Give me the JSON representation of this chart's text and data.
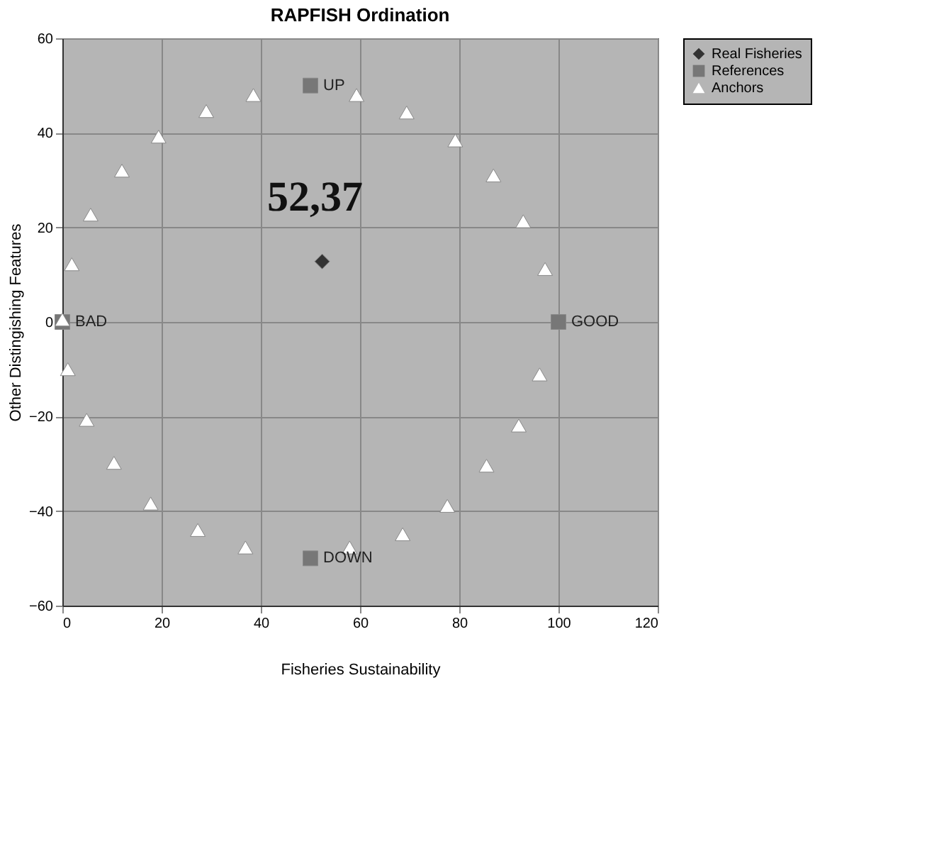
{
  "chart_data": {
    "type": "scatter",
    "title": "RAPFISH Ordination",
    "xlabel": "Fisheries Sustainability",
    "ylabel": "Other Distingishing Features",
    "xlim": [
      0,
      120
    ],
    "xticks": [
      0,
      20,
      40,
      60,
      80,
      100,
      120
    ],
    "ylim": [
      -60,
      60
    ],
    "yticks": [
      -60,
      -40,
      -20,
      0,
      20,
      40,
      60
    ],
    "grid": true,
    "legend": "right",
    "series": [
      {
        "name": "Real Fisheries",
        "color": "#333333",
        "marker": "diamond",
        "x": [
          52.37
        ],
        "values": [
          12.8
        ]
      },
      {
        "name": "References",
        "color": "#777777",
        "marker": "square",
        "x": [
          100,
          50,
          0,
          50
        ],
        "values": [
          0,
          50,
          0,
          -50
        ],
        "value_labels": [
          "GOOD",
          "UP",
          "BAD",
          "DOWN"
        ]
      },
      {
        "name": "Anchors",
        "color": "#ffffff",
        "marker": "triangle",
        "x": [
          0,
          1.9,
          5.7,
          12,
          19.4,
          29,
          38.5,
          59.3,
          69.4,
          79.2,
          86.9,
          92.9,
          97.3,
          1.1,
          4.9,
          10.4,
          17.8,
          27.3,
          36.9,
          57.9,
          68.6,
          77.6,
          85.5,
          92,
          96.2
        ],
        "values": [
          0.5,
          12.2,
          22.7,
          32,
          39.2,
          44.6,
          48,
          48,
          44.3,
          38.4,
          31,
          21.3,
          11.2,
          -10,
          -20.7,
          -29.8,
          -38.4,
          -44,
          -47.7,
          -47.7,
          -44.9,
          -38.9,
          -30.4,
          -21.9,
          -11.1
        ]
      }
    ],
    "annotations": [
      {
        "text": "52,37",
        "x": 52.37,
        "y": 12.8
      }
    ]
  }
}
